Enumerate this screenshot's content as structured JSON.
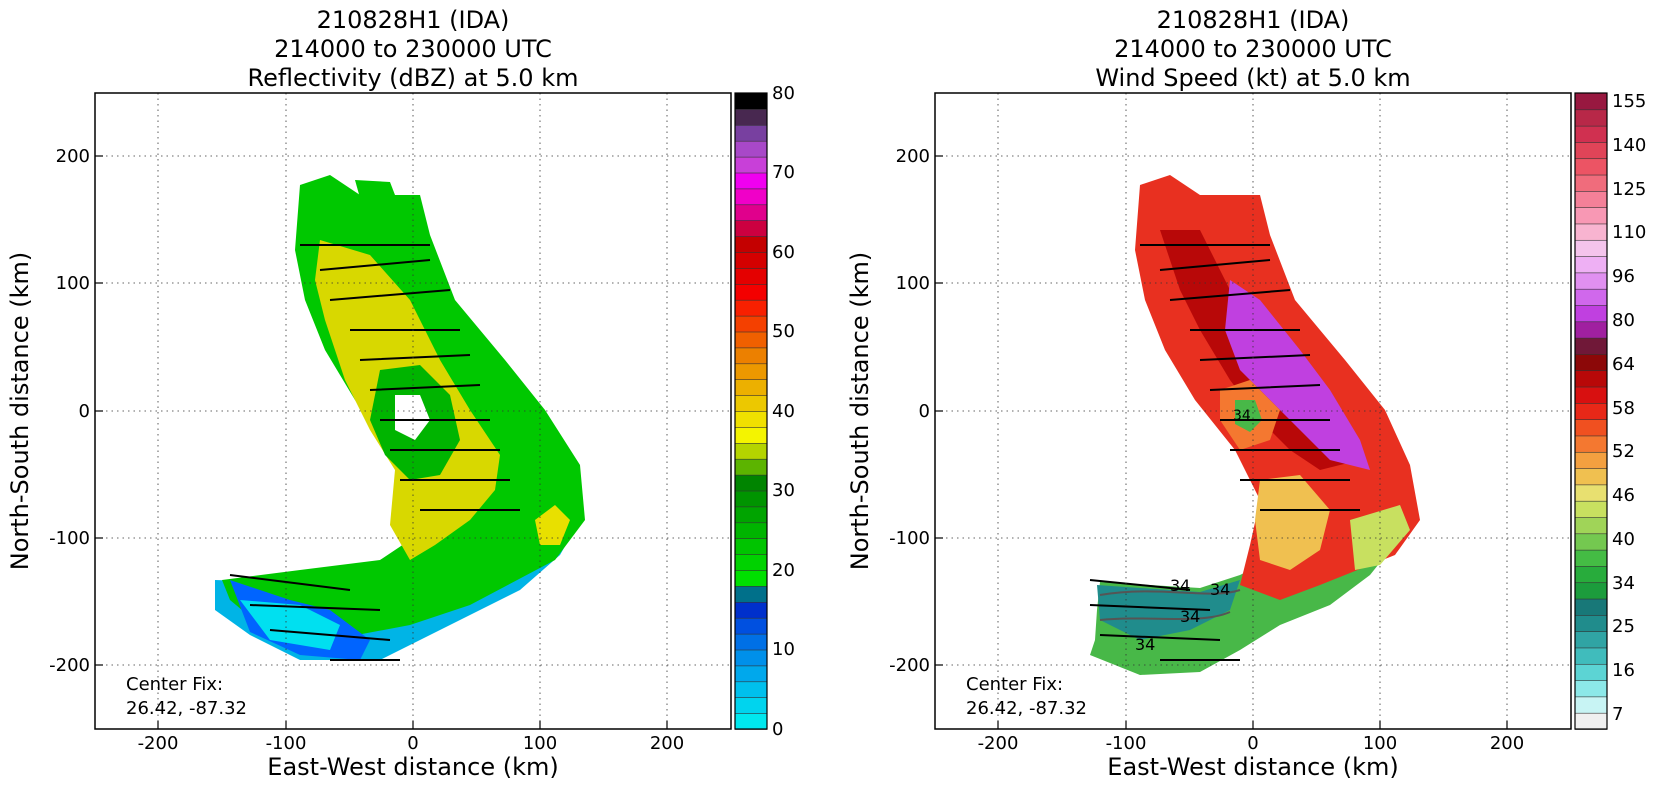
{
  "chart_data": [
    {
      "type": "heatmap",
      "title": [
        "210828H1 (IDA)",
        "214000 to 230000 UTC",
        "Reflectivity (dBZ) at 5.0 km"
      ],
      "xlabel": "East-West distance (km)",
      "ylabel": "North-South distance (km)",
      "xlim": [
        -250,
        250
      ],
      "ylim": [
        -250,
        250
      ],
      "xticks": [
        -200,
        -100,
        0,
        100,
        200
      ],
      "yticks": [
        -200,
        -100,
        0,
        100,
        200
      ],
      "grid": true,
      "annotation": [
        "Center Fix:",
        "26.42, -87.32"
      ],
      "colorbar": {
        "range": [
          0,
          80
        ],
        "tick_values": [
          0,
          10,
          20,
          30,
          40,
          50,
          60,
          70,
          80
        ],
        "colors": [
          "#00e8ef",
          "#00d4ee",
          "#00c0ed",
          "#00a8ec",
          "#0090ea",
          "#0070e6",
          "#0050e0",
          "#0030cc",
          "#00708a",
          "#00e000",
          "#00d200",
          "#00c400",
          "#00b400",
          "#00a400",
          "#009400",
          "#008400",
          "#5cb400",
          "#b4d400",
          "#f4f400",
          "#f0e000",
          "#ecc800",
          "#ecb000",
          "#ec9800",
          "#ec8000",
          "#f06000",
          "#f44000",
          "#f82000",
          "#f40000",
          "#e40000",
          "#d40000",
          "#c40000",
          "#cc0040",
          "#e0008c",
          "#f000c8",
          "#f000f0",
          "#c840d8",
          "#a848c8",
          "#7840a0",
          "#482850",
          "#000000"
        ]
      }
    },
    {
      "type": "heatmap",
      "title": [
        "210828H1 (IDA)",
        "214000 to 230000 UTC",
        "Wind Speed (kt) at 5.0 km"
      ],
      "xlabel": "East-West distance (km)",
      "ylabel": "North-South distance (km)",
      "xlim": [
        -250,
        250
      ],
      "ylim": [
        -250,
        250
      ],
      "xticks": [
        -200,
        -100,
        0,
        100,
        200
      ],
      "yticks": [
        -200,
        -100,
        0,
        100,
        200
      ],
      "grid": true,
      "annotation": [
        "Center Fix:",
        "26.42, -87.32"
      ],
      "contour_labels": [
        "34",
        "34",
        "34",
        "34",
        "34"
      ],
      "colorbar": {
        "tick_labels": [
          "7",
          "16",
          "25",
          "34",
          "40",
          "46",
          "52",
          "58",
          "64",
          "80",
          "96",
          "110",
          "125",
          "140",
          "155"
        ],
        "colors": [
          "#f0f0f0",
          "#c8f4f4",
          "#8ce8e8",
          "#5cd4d4",
          "#40bcbc",
          "#30a4a4",
          "#208c8c",
          "#187878",
          "#1c9c3c",
          "#28ac3c",
          "#44bc44",
          "#74c850",
          "#a0d458",
          "#c8e060",
          "#e8e070",
          "#f0c050",
          "#f4a040",
          "#f47830",
          "#f05020",
          "#e82818",
          "#d81010",
          "#b80808",
          "#8c0808",
          "#701838",
          "#a020a0",
          "#c040e0",
          "#d068ec",
          "#e090f0",
          "#eeb0f4",
          "#f4c4ec",
          "#f8b4d0",
          "#f898b4",
          "#f48098",
          "#f06c7c",
          "#ec5464",
          "#e04458",
          "#d03050",
          "#b82848",
          "#981840"
        ]
      }
    }
  ]
}
